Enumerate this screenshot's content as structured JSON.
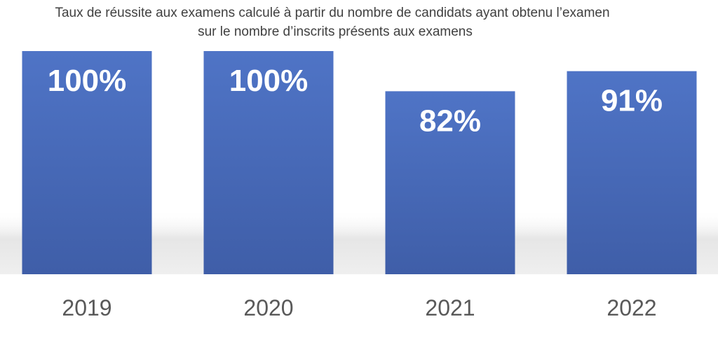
{
  "chart_data": {
    "type": "bar",
    "title_lines": [
      "Taux de réussite  aux examens calculé à partir du nombre de candidats ayant obtenu l’examen",
      "sur le nombre d’inscrits présents aux examens"
    ],
    "categories": [
      "2019",
      "2020",
      "2021",
      "2022"
    ],
    "values": [
      100,
      100,
      82,
      91
    ],
    "data_labels": [
      "100%",
      "100%",
      "82%",
      "91%"
    ],
    "ylim": [
      0,
      100
    ],
    "grid": false,
    "legend": "none",
    "bar_color": "#4a6ebf"
  }
}
